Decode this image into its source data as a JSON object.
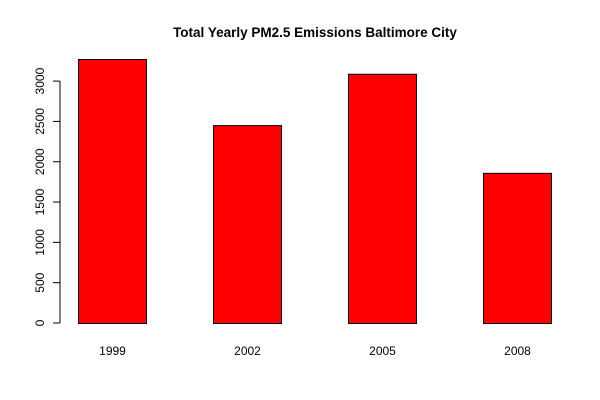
{
  "chart_data": {
    "type": "bar",
    "title": "Total Yearly PM2.5 Emissions Baltimore City",
    "xlabel": "",
    "ylabel": "",
    "categories": [
      "1999",
      "2002",
      "2005",
      "2008"
    ],
    "values": [
      3274,
      2454,
      3091,
      1862
    ],
    "ylim": [
      0,
      3274
    ],
    "yticks": [
      0,
      500,
      1000,
      1500,
      2000,
      2500,
      3000
    ],
    "bar_color": "#ff0000",
    "grid": false,
    "legend": "none"
  }
}
